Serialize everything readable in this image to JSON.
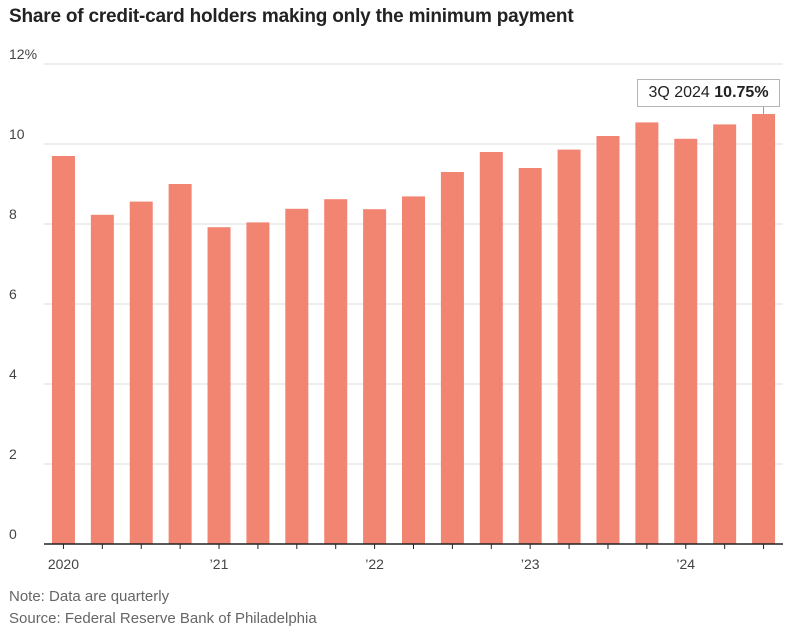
{
  "title": "Share of credit-card holders making only the minimum payment",
  "note": "Note: Data are quarterly",
  "source": "Source: Federal Reserve Bank of Philadelphia",
  "callout": {
    "label": "3Q 2024",
    "value": "10.75%"
  },
  "colors": {
    "bar": "#f28472",
    "grid": "#dddddd",
    "axis": "#222222"
  },
  "chart_data": {
    "type": "bar",
    "title": "Share of credit-card holders making only the minimum payment",
    "categories": [
      "1Q 2020",
      "2Q 2020",
      "3Q 2020",
      "4Q 2020",
      "1Q 2021",
      "2Q 2021",
      "3Q 2021",
      "4Q 2021",
      "1Q 2022",
      "2Q 2022",
      "3Q 2022",
      "4Q 2022",
      "1Q 2023",
      "2Q 2023",
      "3Q 2023",
      "4Q 2023",
      "1Q 2024",
      "2Q 2024",
      "3Q 2024"
    ],
    "values": [
      9.7,
      8.23,
      8.56,
      9.0,
      7.92,
      8.04,
      8.38,
      8.62,
      8.37,
      8.69,
      9.3,
      9.8,
      9.4,
      9.86,
      10.2,
      10.54,
      10.13,
      10.49,
      10.75
    ],
    "ylim": [
      0,
      12
    ],
    "yticks": [
      0,
      2,
      4,
      6,
      8,
      10,
      12
    ],
    "ytick_labels": [
      "0",
      "2",
      "4",
      "6",
      "8",
      "10",
      "12%"
    ],
    "xtick_labels": [
      "2020",
      "’21",
      "’22",
      "’23",
      "’24"
    ],
    "xtick_index": [
      0,
      4,
      8,
      12,
      16
    ],
    "xlabel": "",
    "ylabel": "",
    "grid": true,
    "legend": "none"
  }
}
